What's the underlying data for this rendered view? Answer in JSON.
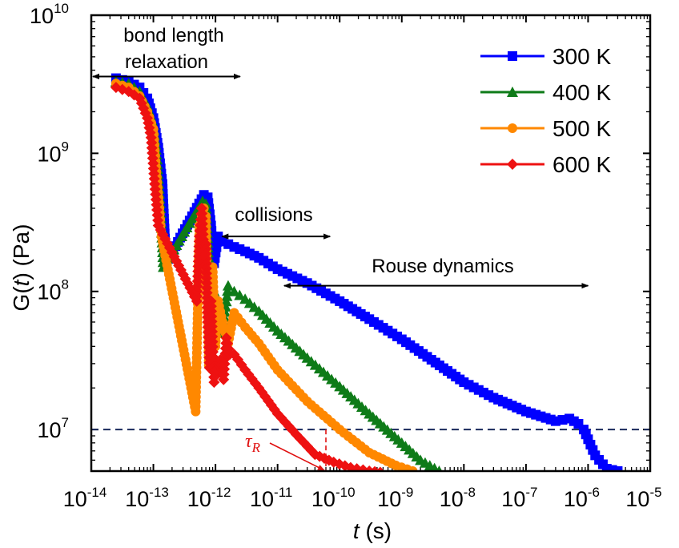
{
  "chart_data": {
    "type": "line",
    "title": "",
    "xlabel": {
      "prefix": "t",
      "suffix": " (s)"
    },
    "ylabel": {
      "prefix": "G(",
      "italic": "t",
      "suffix": ") (Pa)"
    },
    "xscale": "log",
    "yscale": "log",
    "xlim": [
      1e-14,
      1e-05
    ],
    "ylim": [
      5000000.0,
      10000000000.0
    ],
    "x_ticks": [
      {
        "base": "10",
        "exp": "-14",
        "value": 1e-14
      },
      {
        "base": "10",
        "exp": "-13",
        "value": 1e-13
      },
      {
        "base": "10",
        "exp": "-12",
        "value": 1e-12
      },
      {
        "base": "10",
        "exp": "-11",
        "value": 1e-11
      },
      {
        "base": "10",
        "exp": "-10",
        "value": 1e-10
      },
      {
        "base": "10",
        "exp": "-9",
        "value": 1e-09
      },
      {
        "base": "10",
        "exp": "-8",
        "value": 1e-08
      },
      {
        "base": "10",
        "exp": "-7",
        "value": 1e-07
      },
      {
        "base": "10",
        "exp": "-6",
        "value": 1e-06
      },
      {
        "base": "10",
        "exp": "-5",
        "value": 1e-05
      }
    ],
    "y_ticks": [
      {
        "base": "10",
        "exp": "7",
        "value": 10000000.0
      },
      {
        "base": "10",
        "exp": "8",
        "value": 100000000.0
      },
      {
        "base": "10",
        "exp": "9",
        "value": 1000000000.0
      },
      {
        "base": "10",
        "exp": "10",
        "value": 10000000000.0
      }
    ],
    "legend_position": "top-right",
    "series": [
      {
        "name": "300 K",
        "color": "#0000ff",
        "marker": "square",
        "x": [
          2.5e-14,
          4e-14,
          6e-14,
          8e-14,
          1e-13,
          1.2e-13,
          1.4e-13,
          1.6e-13,
          6.5e-13,
          7.5e-13,
          8.5e-13,
          9.5e-13,
          1.1e-12,
          1.3e-12,
          2e-12,
          3e-12,
          5e-12,
          1e-11,
          3e-11,
          1e-10,
          3e-10,
          1e-09,
          3e-09,
          1e-08,
          3e-08,
          1e-07,
          3e-07,
          5e-07,
          7e-07,
          8.5e-07,
          1e-06,
          1.3e-06,
          2e-06,
          3e-06
        ],
        "y": [
          3500000000.0,
          3300000000.0,
          3000000000.0,
          2500000000.0,
          1800000000.0,
          1100000000.0,
          600000000.0,
          160000000.0,
          500000000.0,
          480000000.0,
          300000000.0,
          160000000.0,
          250000000.0,
          230000000.0,
          210000000.0,
          195000000.0,
          175000000.0,
          145000000.0,
          115000000.0,
          85000000.0,
          63000000.0,
          45000000.0,
          32000000.0,
          22000000.0,
          17000000.0,
          13500000.0,
          11500000.0,
          12000000.0,
          11000000.0,
          10000000.0,
          8500000.0,
          6500000.0,
          5200000.0,
          5000000.0
        ]
      },
      {
        "name": "400 K",
        "color": "#0e7b18",
        "marker": "triangle",
        "x": [
          2.5e-14,
          4e-14,
          6e-14,
          8e-14,
          1e-13,
          1.15e-13,
          1.3e-13,
          1.45e-13,
          6.2e-13,
          7e-13,
          7.8e-13,
          8.5e-13,
          9.5e-13,
          1.1e-12,
          1.3e-12,
          1.6e-12,
          2e-12,
          3e-12,
          5e-12,
          1e-11,
          3e-11,
          1e-10,
          3e-10,
          1e-09,
          2e-09,
          4e-09
        ],
        "y": [
          3300000000.0,
          3200000000.0,
          2800000000.0,
          2200000000.0,
          1600000000.0,
          900000000.0,
          400000000.0,
          150000000.0,
          450000000.0,
          430000000.0,
          150000000.0,
          40000000.0,
          100000000.0,
          80000000.0,
          50000000.0,
          110000000.0,
          100000000.0,
          88000000.0,
          72000000.0,
          52000000.0,
          33000000.0,
          20500000.0,
          13000000.0,
          8000000.0,
          6000000.0,
          5000000.0
        ]
      },
      {
        "name": "500 K",
        "color": "#ff8800",
        "marker": "circle",
        "x": [
          2.5e-14,
          4e-14,
          6e-14,
          8e-14,
          1e-13,
          1.1e-13,
          1.25e-13,
          1.35e-13,
          4.8e-13,
          5.5e-13,
          6e-13,
          6.5e-13,
          7e-13,
          7.8e-13,
          9e-13,
          1e-12,
          1.1e-12,
          1.3e-12,
          1.6e-12,
          2e-12,
          3e-12,
          5e-12,
          1e-11,
          3e-11,
          1e-10,
          3e-10,
          8e-10,
          1.5e-09
        ],
        "y": [
          3200000000.0,
          3000000000.0,
          2600000000.0,
          2000000000.0,
          1500000000.0,
          800000000.0,
          400000000.0,
          250000000.0,
          13500000.0,
          300000000.0,
          350000000.0,
          400000000.0,
          350000000.0,
          29000000.0,
          150000000.0,
          40000000.0,
          85000000.0,
          60000000.0,
          42000000.0,
          70000000.0,
          55000000.0,
          42000000.0,
          27000000.0,
          16000000.0,
          10000000.0,
          6800000.0,
          5500000.0,
          5000000.0
        ]
      },
      {
        "name": "600 K",
        "color": "#ee1111",
        "marker": "diamond",
        "x": [
          2.5e-14,
          4e-14,
          6e-14,
          8e-14,
          9.2e-14,
          1.05e-13,
          1.2e-13,
          5e-13,
          5.5e-13,
          6e-13,
          6.5e-13,
          7e-13,
          7.5e-13,
          8e-13,
          8.5e-13,
          9.5e-13,
          1.05e-12,
          1.2e-12,
          1.35e-12,
          1.5e-12,
          1.7e-12,
          2e-12,
          3e-12,
          5e-12,
          1e-11,
          2e-11,
          4e-11,
          8e-11,
          1.5e-10,
          3e-10,
          4.5e-10
        ],
        "y": [
          3000000000.0,
          2800000000.0,
          2500000000.0,
          1800000000.0,
          1300000000.0,
          600000000.0,
          300000000.0,
          85000000.0,
          250000000.0,
          400000000.0,
          200000000.0,
          220000000.0,
          60000000.0,
          28000000.0,
          85000000.0,
          22000000.0,
          27000000.0,
          32000000.0,
          23000000.0,
          46000000.0,
          35000000.0,
          35000000.0,
          27000000.0,
          20000000.0,
          13000000.0,
          9200000.0,
          6600000.0,
          5800000.0,
          5300000.0,
          5000000.0,
          4900000.0
        ]
      }
    ],
    "reference_line": {
      "y": 10000000.0,
      "style": "dashed",
      "color": "#1a2a5c"
    },
    "tau_marker": {
      "label": "τ",
      "subscript": "R",
      "x": 6e-11,
      "y": 10000000.0,
      "color": "#e01010"
    },
    "annotations": [
      {
        "name": "bond-length-relaxation",
        "lines": [
          "bond length",
          "relaxation"
        ],
        "x_from": 1e-14,
        "x_to": 2.5e-12,
        "y": 3600000000.0
      },
      {
        "name": "collisions",
        "lines": [
          "collisions"
        ],
        "x_from": 1.2e-12,
        "x_to": 7e-11,
        "y": 250000000.0
      },
      {
        "name": "rouse-dynamics",
        "lines": [
          "Rouse dynamics"
        ],
        "x_from": 1.2e-11,
        "x_to": 1e-06,
        "y": 110000000.0
      }
    ]
  }
}
